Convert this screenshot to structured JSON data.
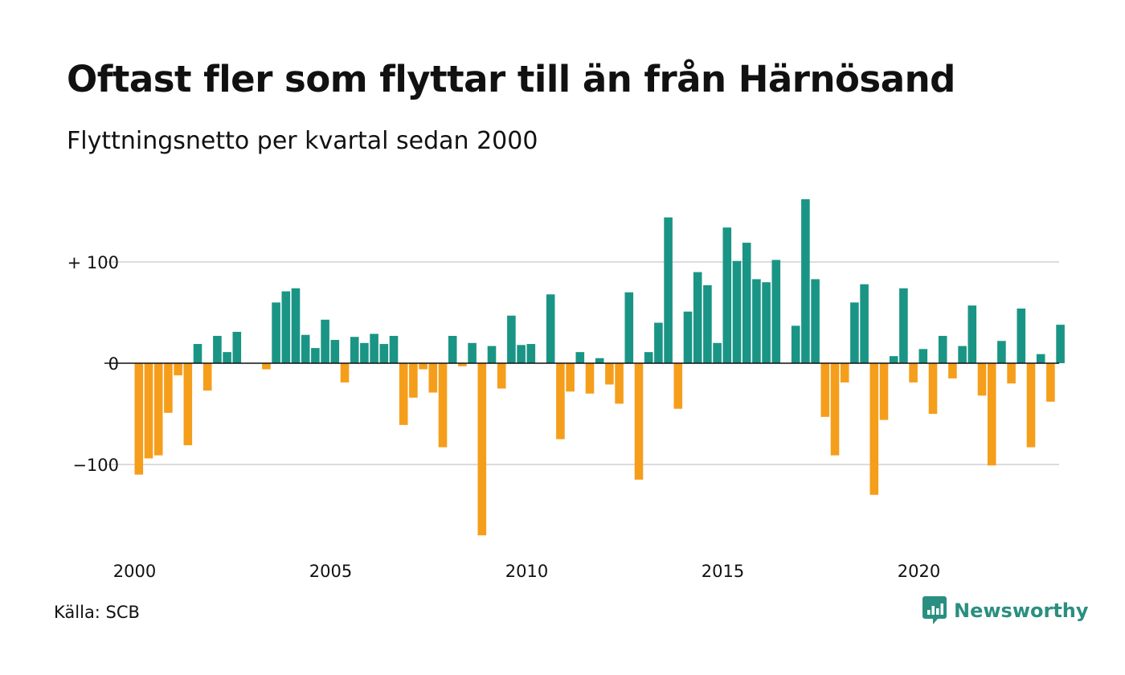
{
  "title": "Oftast fler som flyttar till än från Härnösand",
  "subtitle": "Flyttningsnetto per kvartal sedan 2000",
  "source": "Källa: SCB",
  "brand": {
    "name": "Newsworthy",
    "icon": "newsworthy-chat-bars-icon",
    "color": "#2a8f80"
  },
  "colors": {
    "positive": "#1a9585",
    "negative": "#f59e1b",
    "grid": "#dcdcdc",
    "zero": "#111111"
  },
  "chart_data": {
    "type": "bar",
    "title": "Oftast fler som flyttar till än från Härnösand",
    "subtitle": "Flyttningsnetto per kvartal sedan 2000",
    "xlabel": "",
    "ylabel": "",
    "ylim": [
      -175,
      165
    ],
    "xlim": [
      "2000 Q1",
      "2023 Q3"
    ],
    "grid": true,
    "legend": "none",
    "y_ticks": [
      {
        "value": 100,
        "label": "+ 100"
      },
      {
        "value": 0,
        "label": "0"
      },
      {
        "value": -100,
        "label": "−100"
      }
    ],
    "x_ticks": [
      {
        "year": 2000,
        "label": "2000"
      },
      {
        "year": 2005,
        "label": "2005"
      },
      {
        "year": 2010,
        "label": "2010"
      },
      {
        "year": 2015,
        "label": "2015"
      },
      {
        "year": 2020,
        "label": "2020"
      }
    ],
    "series": [
      {
        "start_year": 2000,
        "start_quarter": 1,
        "values": [
          -110,
          -94,
          -91,
          -49,
          -12,
          -81,
          19,
          -27,
          27,
          11,
          31,
          0,
          0,
          -6,
          60,
          71,
          74,
          28,
          15,
          43,
          23,
          -19,
          26,
          20,
          29,
          19,
          27,
          -61,
          -34,
          -6,
          -29,
          -83,
          27,
          -3,
          20,
          -170,
          17,
          -25,
          47,
          18,
          19,
          0,
          68,
          -75,
          -28,
          11,
          -30,
          5,
          -21,
          -40,
          70,
          -115,
          11,
          40,
          144,
          -45,
          51,
          90,
          77,
          20,
          134,
          101,
          119,
          83,
          80,
          102,
          0,
          37,
          162,
          83,
          -53,
          -91,
          -19,
          60,
          78,
          -130,
          -56,
          7,
          74,
          -19,
          14,
          -50,
          27,
          -15,
          17,
          57,
          -32,
          -101,
          22,
          -20,
          54,
          -83,
          9,
          -38,
          38
        ]
      }
    ]
  }
}
